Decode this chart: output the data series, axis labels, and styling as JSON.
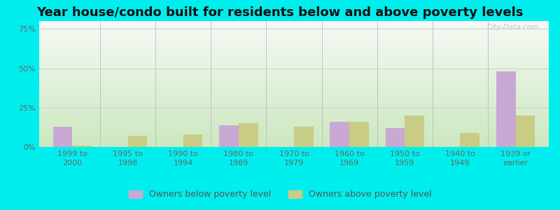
{
  "title": "Year house/condo built for residents below and above poverty levels",
  "categories": [
    "1999 to\n2000",
    "1995 to\n1998",
    "1990 to\n1994",
    "1980 to\n1989",
    "1970 to\n1979",
    "1960 to\n1969",
    "1950 to\n1959",
    "1940 to\n1949",
    "1939 or\nearlier"
  ],
  "below_poverty": [
    13.0,
    0.0,
    0.0,
    14.0,
    0.0,
    16.0,
    12.0,
    0.0,
    48.0
  ],
  "above_poverty": [
    1.0,
    7.0,
    8.0,
    15.0,
    13.0,
    16.0,
    20.0,
    9.0,
    20.0
  ],
  "below_color": "#c9a8d4",
  "above_color": "#c8cc84",
  "ylim": [
    0,
    80
  ],
  "yticks": [
    0,
    25,
    50,
    75
  ],
  "ytick_labels": [
    "0%",
    "25%",
    "50%",
    "75%"
  ],
  "bar_width": 0.35,
  "legend_below": "Owners below poverty level",
  "legend_above": "Owners above poverty level",
  "title_fontsize": 13,
  "tick_fontsize": 8,
  "legend_fontsize": 9,
  "outer_bg": "#00eeee"
}
